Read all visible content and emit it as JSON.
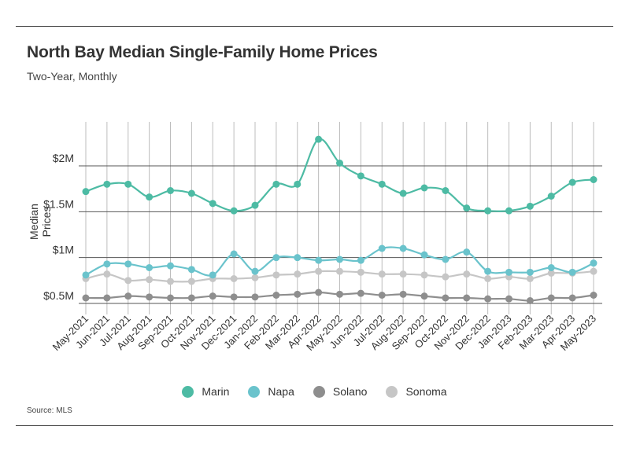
{
  "header": {
    "title": "North Bay Median Single-Family Home Prices",
    "subtitle": "Two-Year, Monthly"
  },
  "footer": {
    "source": "Source: MLS"
  },
  "chart_data": {
    "type": "line",
    "title": "North Bay Median Single-Family Home Prices",
    "subtitle": "Two-Year, Monthly",
    "xlabel": "",
    "ylabel": "Median Prices",
    "ylim": [
      300000,
      2600000
    ],
    "yticks": [
      500000,
      1000000,
      1500000,
      2000000
    ],
    "ytick_labels": [
      "$0.5M",
      "$1M",
      "$1.5M",
      "$2M"
    ],
    "grid": "vertical and horizontal",
    "legend_position": "bottom-center",
    "categories": [
      "May-2021",
      "Jun-2021",
      "Jul-2021",
      "Aug-2021",
      "Sep-2021",
      "Oct-2021",
      "Nov-2021",
      "Dec-2021",
      "Jan-2022",
      "Feb-2022",
      "Mar-2022",
      "Apr-2022",
      "May-2022",
      "Jun-2022",
      "Jul-2022",
      "Aug-2022",
      "Sep-2022",
      "Oct-2022",
      "Nov-2022",
      "Dec-2022",
      "Jan-2023",
      "Feb-2023",
      "Mar-2023",
      "Apr-2023",
      "May-2023"
    ],
    "series": [
      {
        "name": "Marin",
        "color": "#4dbba4",
        "values": [
          1720000,
          1800000,
          1800000,
          1660000,
          1730000,
          1700000,
          1590000,
          1510000,
          1570000,
          1800000,
          1800000,
          2290000,
          2030000,
          1890000,
          1800000,
          1700000,
          1760000,
          1730000,
          1540000,
          1510000,
          1510000,
          1560000,
          1670000,
          1820000,
          1850000
        ]
      },
      {
        "name": "Napa",
        "color": "#6ac3cc",
        "values": [
          810000,
          930000,
          930000,
          890000,
          910000,
          870000,
          810000,
          1040000,
          850000,
          1000000,
          1000000,
          970000,
          980000,
          970000,
          1100000,
          1100000,
          1030000,
          980000,
          1060000,
          850000,
          840000,
          840000,
          890000,
          840000,
          940000
        ]
      },
      {
        "name": "Solano",
        "color": "#8e8e8e",
        "values": [
          560000,
          560000,
          580000,
          570000,
          560000,
          560000,
          580000,
          570000,
          570000,
          590000,
          600000,
          620000,
          600000,
          610000,
          590000,
          600000,
          580000,
          560000,
          560000,
          550000,
          550000,
          530000,
          560000,
          560000,
          590000
        ]
      },
      {
        "name": "Sonoma",
        "color": "#c6c6c6",
        "values": [
          770000,
          820000,
          750000,
          760000,
          740000,
          740000,
          770000,
          770000,
          780000,
          810000,
          820000,
          850000,
          850000,
          840000,
          820000,
          820000,
          810000,
          790000,
          820000,
          770000,
          790000,
          770000,
          830000,
          830000,
          850000
        ]
      }
    ]
  }
}
